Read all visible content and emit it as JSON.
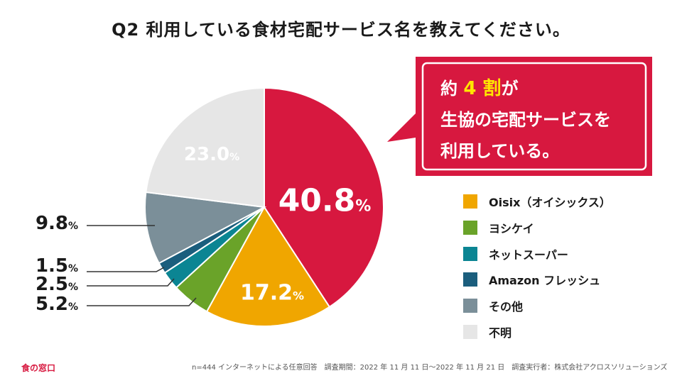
{
  "title": "Q2 利用している食材宅配サービス名を教えてください。",
  "callout": {
    "line1_prefix": "約 ",
    "line1_highlight": "4 割",
    "line1_suffix": "が",
    "line2": "生協の宅配サービスを",
    "line3": "利用している。",
    "bg_color": "#d7183f",
    "highlight_color": "#ffe600"
  },
  "chart_data": {
    "type": "pie",
    "title": "",
    "unit": "%",
    "start": "12 o'clock, clockwise",
    "slices": [
      {
        "name": "生協の宅配サービス",
        "value": 40.8,
        "label": "40.8",
        "color": "#d7183f",
        "in_legend": false
      },
      {
        "name": "Oisix（オイシックス）",
        "value": 17.2,
        "label": "17.2",
        "color": "#f0a600",
        "in_legend": true
      },
      {
        "name": "ヨシケイ",
        "value": 5.2,
        "label": "5.2",
        "color": "#6aa329",
        "in_legend": true
      },
      {
        "name": "ネットスーパー",
        "value": 2.5,
        "label": "2.5",
        "color": "#0b8593",
        "in_legend": true
      },
      {
        "name": "Amazon フレッシュ",
        "value": 1.5,
        "label": "1.5",
        "color": "#1b5e7d",
        "in_legend": true
      },
      {
        "name": "その他",
        "value": 9.8,
        "label": "9.8",
        "color": "#7b8f99",
        "in_legend": true
      },
      {
        "name": "不明",
        "value": 23.0,
        "label": "23.0",
        "color": "#e6e6e6",
        "in_legend": true
      }
    ]
  },
  "brand": "食の窓口",
  "footnote": "n=444 インターネットによる任意回答　調査期間：2022 年 11 月 11 日〜2022 年 11 月 21 日　調査実行者：株式会社アクロスソリューションズ"
}
